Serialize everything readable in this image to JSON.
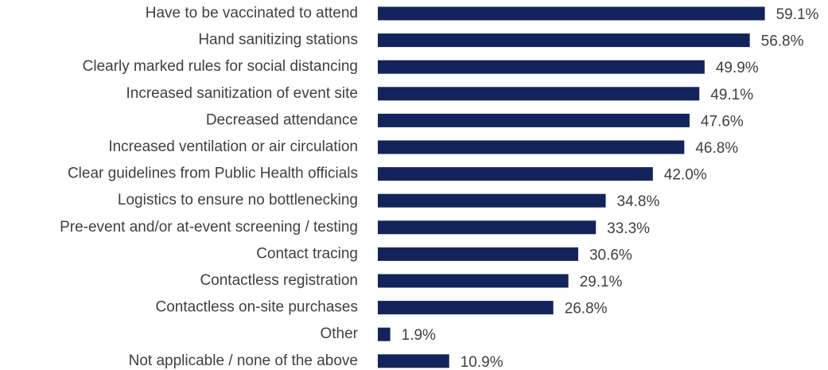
{
  "chart_data": {
    "type": "barh",
    "categories": [
      "Have to be vaccinated to attend",
      "Hand sanitizing stations",
      "Clearly marked rules for social distancing",
      "Increased sanitization of event site",
      "Decreased attendance",
      "Increased ventilation or air circulation",
      "Clear guidelines from Public Health officials",
      "Logistics to ensure no bottlenecking",
      "Pre-event and/or at-event screening / testing",
      "Contact tracing",
      "Contactless registration",
      "Contactless on-site purchases",
      "Other",
      "Not applicable / none of the above"
    ],
    "values": [
      59.1,
      56.8,
      49.9,
      49.1,
      47.6,
      46.8,
      42.0,
      34.8,
      33.3,
      30.6,
      29.1,
      26.8,
      1.9,
      10.9
    ],
    "value_labels": [
      "59.1%",
      "56.8%",
      "49.9%",
      "49.1%",
      "47.6%",
      "46.8%",
      "42.0%",
      "34.8%",
      "33.3%",
      "30.6%",
      "29.1%",
      "26.8%",
      "1.9%",
      "10.9%"
    ],
    "color": "#13235b",
    "xlim": [
      0,
      60
    ]
  }
}
